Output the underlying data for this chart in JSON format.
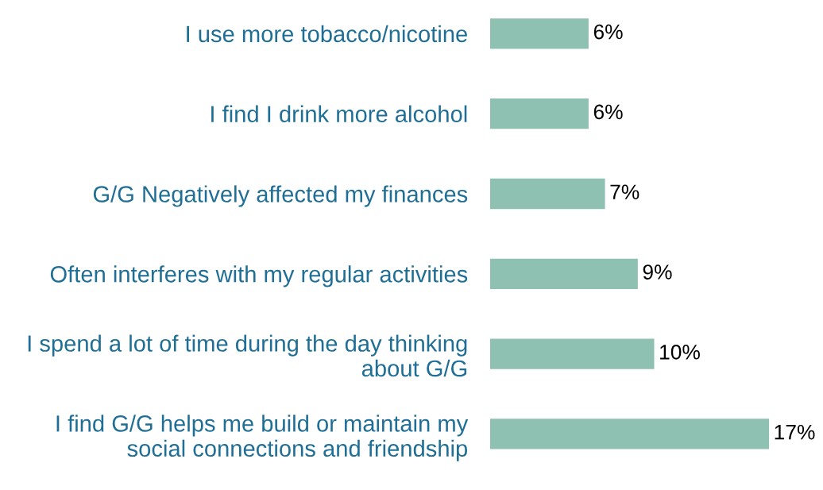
{
  "chart_data": {
    "type": "bar",
    "orientation": "horizontal",
    "categories": [
      "I use more tobacco/nicotine",
      "I find I drink more alcohol",
      "G/G Negatively affected my finances",
      "Often interferes with my regular activities",
      "I spend a lot of time during the day thinking about G/G",
      "I find G/G helps me build or maintain my social connections and friendship"
    ],
    "values": [
      6,
      6,
      7,
      9,
      10,
      17
    ],
    "value_labels": [
      "6%",
      "6%",
      "7%",
      "9%",
      "10%",
      "17%"
    ],
    "color": "#8fc1b3",
    "tick_labels": "y",
    "grid": false,
    "legend": false
  }
}
